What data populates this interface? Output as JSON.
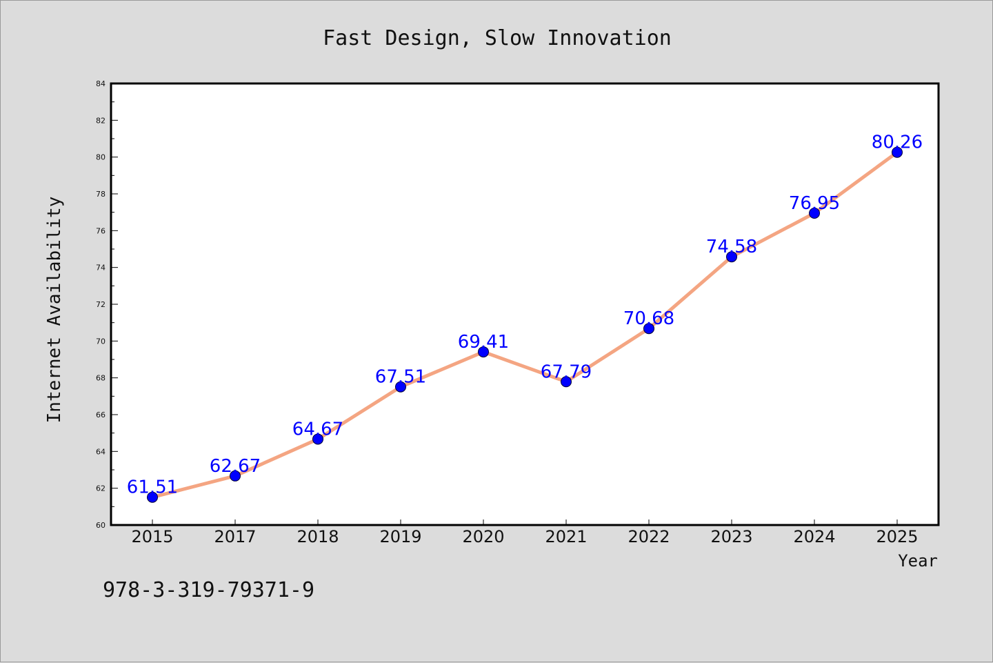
{
  "chart_data": {
    "type": "line",
    "title": "Fast Design, Slow Innovation",
    "xlabel": "Year",
    "ylabel": "Internet Availability",
    "categories": [
      "2015",
      "2017",
      "2018",
      "2019",
      "2020",
      "2021",
      "2022",
      "2023",
      "2024",
      "2025"
    ],
    "series": [
      {
        "values": [
          61.51,
          62.67,
          64.67,
          67.51,
          69.41,
          67.79,
          70.68,
          74.58,
          76.95,
          80.26
        ],
        "line_color": "#f4a582",
        "marker_color": "#0000ff"
      }
    ],
    "data_labels": [
      "61.51",
      "62.67",
      "64.67",
      "67.51",
      "69.41",
      "67.79",
      "70.68",
      "74.58",
      "76.95",
      "80.26"
    ],
    "ylim": [
      60,
      84
    ],
    "yticks": [
      60,
      62,
      64,
      66,
      68,
      70,
      72,
      74,
      76,
      78,
      80,
      82,
      84
    ],
    "ytick_labels": [
      "60",
      "62",
      "64",
      "66",
      "68",
      "70",
      "72",
      "74",
      "76",
      "78",
      "80",
      "82",
      "84"
    ],
    "grid": false,
    "annotation": "978-3-319-79371-9"
  },
  "colors": {
    "background": "#dcdcdc",
    "plot_background": "#ffffff",
    "line": "#f4a582",
    "markers": "#0000ff",
    "data_labels": "#0000ff"
  }
}
